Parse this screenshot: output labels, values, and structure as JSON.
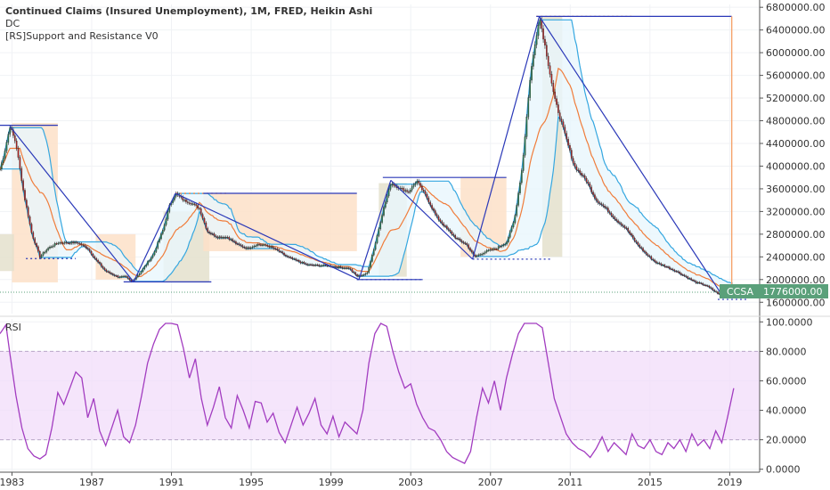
{
  "legend": {
    "title": "Continued Claims (Insured Unemployment), 1M, FRED, Heikin Ashi",
    "line2": "DC",
    "line3": "[RS]Support and Resistance V0"
  },
  "price_badge": {
    "symbol": "CCSA",
    "value": "1776000.00",
    "color": "#5aa07a"
  },
  "rsi_label": "RSI",
  "colors": {
    "up": "#2e7d4f",
    "down": "#b22222",
    "dc_band": "#35a7e0",
    "dc_fill": "#e9f6fd",
    "mid": "#f07c3a",
    "trend": "#2a38b8",
    "rsi": "#a23cc0",
    "rsi_band": "#f1dcfa",
    "sr_orange": "#fde1c8",
    "sr_olive": "#e4e1cc"
  },
  "chart_data": [
    {
      "type": "candlestick",
      "name": "main",
      "title": "Continued Claims (Insured Unemployment), 1M, FRED, Heikin Ashi",
      "x_range": [
        1982.4,
        2020.5
      ],
      "ylim": [
        1400000,
        6850000
      ],
      "y_ticks": [
        1600000,
        2000000,
        2400000,
        2800000,
        3200000,
        3600000,
        4000000,
        4400000,
        4800000,
        5200000,
        5600000,
        6000000,
        6400000,
        6800000
      ],
      "y_tick_labels": [
        "1600000.00",
        "2000000.00",
        "2400000.00",
        "2800000.00",
        "3200000.00",
        "3600000.00",
        "4000000.00",
        "4400000.00",
        "4800000.00",
        "5200000.00",
        "5600000.00",
        "6000000.00",
        "6400000.00",
        "6800000.00"
      ],
      "x_ticks": [
        1983,
        1987,
        1991,
        1995,
        1999,
        2003,
        2007,
        2011,
        2015,
        2019
      ],
      "x_tick_labels": [
        "1983",
        "1987",
        "1991",
        "1995",
        "1999",
        "2003",
        "2007",
        "2011",
        "2015",
        "2019"
      ],
      "series_path": [
        [
          1982.4,
          3950000
        ],
        [
          1982.6,
          4200000
        ],
        [
          1982.9,
          4700000
        ],
        [
          1983.2,
          4400000
        ],
        [
          1983.6,
          3500000
        ],
        [
          1984.0,
          2800000
        ],
        [
          1984.4,
          2400000
        ],
        [
          1984.8,
          2550000
        ],
        [
          1985.3,
          2650000
        ],
        [
          1985.8,
          2650000
        ],
        [
          1986.3,
          2650000
        ],
        [
          1986.8,
          2550000
        ],
        [
          1987.2,
          2350000
        ],
        [
          1987.7,
          2150000
        ],
        [
          1988.3,
          2050000
        ],
        [
          1988.7,
          2050000
        ],
        [
          1989.0,
          1960000
        ],
        [
          1989.5,
          2150000
        ],
        [
          1990.1,
          2450000
        ],
        [
          1990.6,
          2900000
        ],
        [
          1990.9,
          3300000
        ],
        [
          1991.2,
          3520000
        ],
        [
          1991.6,
          3400000
        ],
        [
          1992.0,
          3350000
        ],
        [
          1992.4,
          3250000
        ],
        [
          1992.8,
          2850000
        ],
        [
          1993.3,
          2750000
        ],
        [
          1993.8,
          2750000
        ],
        [
          1994.3,
          2620000
        ],
        [
          1994.8,
          2550000
        ],
        [
          1995.3,
          2620000
        ],
        [
          1995.8,
          2600000
        ],
        [
          1996.3,
          2520000
        ],
        [
          1996.8,
          2400000
        ],
        [
          1997.3,
          2330000
        ],
        [
          1997.8,
          2260000
        ],
        [
          1998.3,
          2250000
        ],
        [
          1998.8,
          2250000
        ],
        [
          1999.3,
          2220000
        ],
        [
          1999.9,
          2200000
        ],
        [
          2000.3,
          2060000
        ],
        [
          2000.8,
          2100000
        ],
        [
          2001.2,
          2600000
        ],
        [
          2001.6,
          3200000
        ],
        [
          2002.0,
          3700000
        ],
        [
          2002.5,
          3600000
        ],
        [
          2002.9,
          3550000
        ],
        [
          2003.3,
          3740000
        ],
        [
          2003.8,
          3450000
        ],
        [
          2004.3,
          3100000
        ],
        [
          2004.8,
          2900000
        ],
        [
          2005.3,
          2720000
        ],
        [
          2005.8,
          2620000
        ],
        [
          2006.2,
          2400000
        ],
        [
          2006.8,
          2500000
        ],
        [
          2007.3,
          2550000
        ],
        [
          2007.8,
          2650000
        ],
        [
          2008.2,
          3050000
        ],
        [
          2008.6,
          4000000
        ],
        [
          2009.0,
          5600000
        ],
        [
          2009.45,
          6640000
        ],
        [
          2009.8,
          6000000
        ],
        [
          2010.2,
          5200000
        ],
        [
          2010.7,
          4600000
        ],
        [
          2011.2,
          4000000
        ],
        [
          2011.8,
          3750000
        ],
        [
          2012.3,
          3400000
        ],
        [
          2012.8,
          3250000
        ],
        [
          2013.3,
          3050000
        ],
        [
          2013.8,
          2900000
        ],
        [
          2014.3,
          2650000
        ],
        [
          2014.8,
          2450000
        ],
        [
          2015.3,
          2300000
        ],
        [
          2015.8,
          2230000
        ],
        [
          2016.3,
          2150000
        ],
        [
          2016.8,
          2050000
        ],
        [
          2017.3,
          1950000
        ],
        [
          2017.8,
          1900000
        ],
        [
          2018.3,
          1780000
        ],
        [
          2018.7,
          1700000
        ],
        [
          2019.0,
          1750000
        ],
        [
          2019.2,
          1776000
        ]
      ],
      "sr_zones": [
        {
          "x": [
            1983.0,
            1985.3
          ],
          "y": [
            1950000,
            4760000
          ],
          "kind": "orange"
        },
        {
          "x": [
            1982.4,
            1983.1
          ],
          "y": [
            2150000,
            2800000
          ],
          "kind": "olive"
        },
        {
          "x": [
            1987.2,
            1989.2
          ],
          "y": [
            2000000,
            2800000
          ],
          "kind": "orange"
        },
        {
          "x": [
            1990.6,
            1992.9
          ],
          "y": [
            1950000,
            3200000
          ],
          "kind": "olive"
        },
        {
          "x": [
            1992.6,
            2000.3
          ],
          "y": [
            2500000,
            3520000
          ],
          "kind": "orange"
        },
        {
          "x": [
            2001.4,
            2002.8
          ],
          "y": [
            2050000,
            3700000
          ],
          "kind": "olive"
        },
        {
          "x": [
            2005.5,
            2007.8
          ],
          "y": [
            2400000,
            3800000
          ],
          "kind": "orange"
        },
        {
          "x": [
            2009.6,
            2010.6
          ],
          "y": [
            2400000,
            6640000
          ],
          "kind": "olive"
        }
      ],
      "trendlines": [
        {
          "x": [
            1982.9,
            1989.1
          ],
          "y": [
            4700000,
            1960000
          ]
        },
        {
          "x": [
            1989.1,
            1991.2
          ],
          "y": [
            1960000,
            3520000
          ]
        },
        {
          "x": [
            1991.2,
            2000.4
          ],
          "y": [
            3520000,
            2000000
          ]
        },
        {
          "x": [
            2000.4,
            2002.0
          ],
          "y": [
            2000000,
            3750000
          ]
        },
        {
          "x": [
            2002.0,
            2006.1
          ],
          "y": [
            3750000,
            2360000
          ]
        },
        {
          "x": [
            2006.1,
            2009.45
          ],
          "y": [
            2360000,
            6640000
          ]
        },
        {
          "x": [
            2009.45,
            2018.7
          ],
          "y": [
            6640000,
            1680000
          ]
        }
      ],
      "hlines": [
        {
          "x": [
            1982.4,
            1985.3
          ],
          "y": 4720000,
          "style": "solid",
          "color": "#2a38b8"
        },
        {
          "x": [
            1983.7,
            1986.2
          ],
          "y": 2370000,
          "style": "dash",
          "color": "#2a38b8"
        },
        {
          "x": [
            1988.6,
            1993.0
          ],
          "y": 1960000,
          "style": "solid",
          "color": "#2a38b8"
        },
        {
          "x": [
            1991.2,
            1993.8
          ],
          "y": 3520000,
          "style": "dash",
          "color": "#f07c3a"
        },
        {
          "x": [
            1992.6,
            2000.3
          ],
          "y": 3520000,
          "style": "solid",
          "color": "#2a38b8"
        },
        {
          "x": [
            2000.3,
            2003.6
          ],
          "y": 2000000,
          "style": "dash",
          "color": "#2a38b8"
        },
        {
          "x": [
            2000.3,
            2003.6
          ],
          "y": 2000000,
          "style": "solid",
          "color": "#2a38b8"
        },
        {
          "x": [
            2001.6,
            2007.8
          ],
          "y": 3800000,
          "style": "solid",
          "color": "#2a38b8"
        },
        {
          "x": [
            2006.1,
            2010.0
          ],
          "y": 2360000,
          "style": "dash",
          "color": "#2a38b8"
        },
        {
          "x": [
            2009.3,
            2014.2
          ],
          "y": 6640000,
          "style": "dash",
          "color": "#f07c3a"
        },
        {
          "x": [
            2009.3,
            2019.1
          ],
          "y": 6640000,
          "style": "solid",
          "color": "#2a38b8"
        },
        {
          "x": [
            2018.4,
            2019.9
          ],
          "y": 1650000,
          "style": "dash",
          "color": "#2a38b8"
        }
      ],
      "orange_vline": {
        "x": 2019.1,
        "y": [
          1700000,
          6640000
        ]
      },
      "last_price_line": 1776000
    },
    {
      "type": "line",
      "name": "rsi",
      "title": "RSI",
      "ylim": [
        -2,
        102
      ],
      "y_ticks": [
        0,
        20,
        40,
        60,
        80,
        100
      ],
      "y_tick_labels": [
        "0.0000",
        "20.0000",
        "40.0000",
        "60.0000",
        "80.0000",
        "100.0000"
      ],
      "band": [
        20,
        80
      ],
      "x": [
        1982.4,
        1982.7,
        1982.9,
        1983.2,
        1983.5,
        1983.8,
        1984.1,
        1984.4,
        1984.7,
        1985.0,
        1985.3,
        1985.6,
        1985.9,
        1986.2,
        1986.5,
        1986.8,
        1987.1,
        1987.4,
        1987.7,
        1988.0,
        1988.3,
        1988.6,
        1988.9,
        1989.2,
        1989.5,
        1989.8,
        1990.1,
        1990.4,
        1990.7,
        1991.0,
        1991.3,
        1991.6,
        1991.9,
        1992.2,
        1992.5,
        1992.8,
        1993.1,
        1993.4,
        1993.7,
        1994.0,
        1994.3,
        1994.6,
        1994.9,
        1995.2,
        1995.5,
        1995.8,
        1996.1,
        1996.4,
        1996.7,
        1997.0,
        1997.3,
        1997.6,
        1997.9,
        1998.2,
        1998.5,
        1998.8,
        1999.1,
        1999.4,
        1999.7,
        2000.0,
        2000.3,
        2000.6,
        2000.9,
        2001.2,
        2001.5,
        2001.8,
        2002.1,
        2002.4,
        2002.7,
        2003.0,
        2003.3,
        2003.6,
        2003.9,
        2004.2,
        2004.5,
        2004.8,
        2005.1,
        2005.4,
        2005.7,
        2006.0,
        2006.3,
        2006.6,
        2006.9,
        2007.2,
        2007.5,
        2007.8,
        2008.1,
        2008.4,
        2008.7,
        2009.0,
        2009.3,
        2009.6,
        2009.9,
        2010.2,
        2010.5,
        2010.8,
        2011.1,
        2011.4,
        2011.7,
        2012.0,
        2012.3,
        2012.6,
        2012.9,
        2013.2,
        2013.5,
        2013.8,
        2014.1,
        2014.4,
        2014.7,
        2015.0,
        2015.3,
        2015.6,
        2015.9,
        2016.2,
        2016.5,
        2016.8,
        2017.1,
        2017.4,
        2017.7,
        2018.0,
        2018.3,
        2018.6,
        2018.9,
        2019.2
      ],
      "values": [
        92,
        98,
        78,
        50,
        28,
        14,
        9,
        7,
        10,
        28,
        52,
        44,
        55,
        66,
        62,
        35,
        48,
        26,
        16,
        28,
        40,
        22,
        18,
        30,
        50,
        72,
        85,
        95,
        99,
        99,
        98,
        82,
        62,
        75,
        48,
        30,
        42,
        56,
        35,
        28,
        50,
        40,
        28,
        46,
        45,
        32,
        38,
        25,
        18,
        30,
        42,
        30,
        38,
        48,
        30,
        24,
        36,
        22,
        32,
        28,
        24,
        40,
        72,
        92,
        99,
        97,
        80,
        66,
        55,
        58,
        44,
        35,
        28,
        26,
        20,
        12,
        8,
        6,
        4,
        12,
        35,
        55,
        45,
        60,
        40,
        62,
        78,
        92,
        99,
        99,
        99,
        96,
        72,
        48,
        36,
        24,
        18,
        14,
        12,
        8,
        14,
        22,
        12,
        18,
        14,
        10,
        24,
        16,
        14,
        20,
        12,
        10,
        18,
        14,
        20,
        12,
        24,
        16,
        20,
        14,
        26,
        18,
        36,
        55
      ]
    }
  ]
}
